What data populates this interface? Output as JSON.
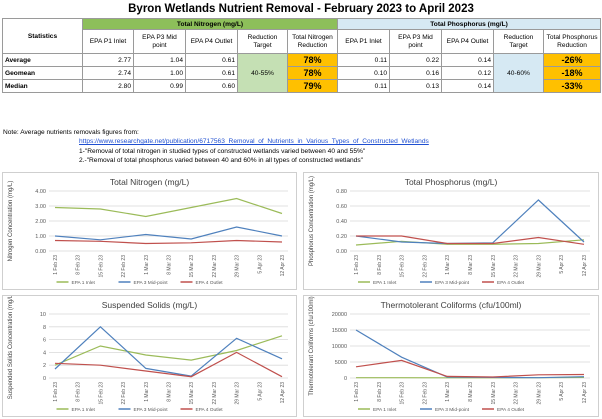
{
  "title": "Byron Wetlands Nutrient Removal - February 2023 to April 2023",
  "table": {
    "statistics_label": "Statistics",
    "nitrogen_group": "Total Nitrogen (mg/L)",
    "phosphorus_group": "Total Phosphorus (mg/L)",
    "columns": {
      "n_p1": "EPA P1 Inlet",
      "n_p3": "EPA P3 Mid point",
      "n_p4": "EPA P4 Outlet",
      "n_target": "Reduction Target",
      "n_reduction": "Total Nitrogen Reduction",
      "p_p1": "EPA P1 Inlet",
      "p_p3": "EPA P3 Mid point",
      "p_p4": "EPA P4 Outlet",
      "p_target": "Reduction Target",
      "p_reduction": "Total Phosphorus Reduction"
    },
    "n_target_value": "40-55%",
    "p_target_value": "40-60%",
    "rows": [
      {
        "label": "Average",
        "n_p1": "2.77",
        "n_p3": "1.04",
        "n_p4": "0.61",
        "n_red": "78%",
        "p_p1": "0.11",
        "p_p3": "0.22",
        "p_p4": "0.14",
        "p_red": "-26%"
      },
      {
        "label": "Geomean",
        "n_p1": "2.74",
        "n_p3": "1.00",
        "n_p4": "0.61",
        "n_red": "78%",
        "p_p1": "0.10",
        "p_p3": "0.16",
        "p_p4": "0.12",
        "p_red": "-18%"
      },
      {
        "label": "Median",
        "n_p1": "2.80",
        "n_p3": "0.99",
        "n_p4": "0.60",
        "n_red": "79%",
        "p_p1": "0.11",
        "p_p3": "0.13",
        "p_p4": "0.14",
        "p_red": "-33%"
      }
    ]
  },
  "notes": {
    "line1": "Note: Average nutrients removals figures from:",
    "link": "https://www.researchgate.net/publication/6717563_Removal_of_Nutrients_in_Various_Types_of_Constructed_Wetlands",
    "line2": "1-\"Removal of total nitrogen in studied types of constructed wetlands varied between 40 and 55%\"",
    "line3": "2.-\"Removal of total phosphorus varied between 40 and 60% in all types of constructed wetlands\""
  },
  "colors": {
    "p1": "#9bbb59",
    "p3": "#4f81bd",
    "p4": "#c0504d"
  },
  "chart_data": [
    {
      "type": "line",
      "title": "Total Nitrogen (mg/L)",
      "ylabel": "Nitrogen Concentration (mg/L)",
      "ylim": [
        0,
        4
      ],
      "yticks": [
        "0.00",
        "1.00",
        "2.00",
        "3.00",
        "4.00"
      ],
      "x": [
        "1 Feb 23",
        "8 Feb 23",
        "15 Feb 23",
        "22 Feb 23",
        "1 Mar 23",
        "8 Mar 23",
        "15 Mar 23",
        "22 Mar 23",
        "29 Mar 23",
        "5 Apr 23",
        "12 Apr 23"
      ],
      "series": [
        {
          "name": "EPA 1 Inlet",
          "x": [
            "1 Feb 23",
            "15 Feb 23",
            "1 Mar 23",
            "15 Mar 23",
            "29 Mar 23",
            "12 Apr 23"
          ],
          "values": [
            2.9,
            2.8,
            2.3,
            2.9,
            3.5,
            2.5
          ]
        },
        {
          "name": "EPA 3 Mid-point",
          "x": [
            "1 Feb 23",
            "15 Feb 23",
            "1 Mar 23",
            "15 Mar 23",
            "29 Mar 23",
            "12 Apr 23"
          ],
          "values": [
            1.0,
            0.75,
            1.1,
            0.8,
            1.6,
            1.0
          ]
        },
        {
          "name": "EPA 4 Outlet",
          "x": [
            "1 Feb 23",
            "15 Feb 23",
            "1 Mar 23",
            "15 Mar 23",
            "29 Mar 23",
            "12 Apr 23"
          ],
          "values": [
            0.7,
            0.65,
            0.5,
            0.55,
            0.7,
            0.6
          ]
        }
      ]
    },
    {
      "type": "line",
      "title": "Total Phosphorus (mg/L)",
      "ylabel": "Phosphorus Concentration (mg/L)",
      "ylim": [
        0,
        0.8
      ],
      "yticks": [
        "0.00",
        "0.20",
        "0.40",
        "0.60",
        "0.80"
      ],
      "x": [
        "1 Feb 23",
        "8 Feb 23",
        "15 Feb 23",
        "22 Feb 23",
        "1 Mar 23",
        "8 Mar 23",
        "15 Mar 23",
        "22 Mar 23",
        "29 Mar 23",
        "5 Apr 23",
        "12 Apr 23"
      ],
      "series": [
        {
          "name": "EPA 1 Inlet",
          "x": [
            "1 Feb 23",
            "15 Feb 23",
            "1 Mar 23",
            "15 Mar 23",
            "29 Mar 23",
            "12 Apr 23"
          ],
          "values": [
            0.08,
            0.13,
            0.09,
            0.09,
            0.1,
            0.15
          ]
        },
        {
          "name": "EPA 3 Mid-point",
          "x": [
            "1 Feb 23",
            "15 Feb 23",
            "1 Mar 23",
            "15 Mar 23",
            "29 Mar 23",
            "12 Apr 23"
          ],
          "values": [
            0.2,
            0.12,
            0.1,
            0.11,
            0.68,
            0.12
          ]
        },
        {
          "name": "EPA 4 Outlet",
          "x": [
            "1 Feb 23",
            "15 Feb 23",
            "1 Mar 23",
            "15 Mar 23",
            "29 Mar 23",
            "12 Apr 23"
          ],
          "values": [
            0.2,
            0.2,
            0.1,
            0.1,
            0.18,
            0.09
          ]
        }
      ]
    },
    {
      "type": "line",
      "title": "Suspended Solids (mg/L)",
      "ylabel": "Suspended Solids Concentration (mg/L)",
      "ylim": [
        0,
        10
      ],
      "yticks": [
        "0",
        "2",
        "4",
        "6",
        "8",
        "10"
      ],
      "x": [
        "1 Feb 23",
        "8 Feb 23",
        "15 Feb 23",
        "22 Feb 23",
        "1 Mar 23",
        "8 Mar 23",
        "15 Mar 23",
        "22 Mar 23",
        "29 Mar 23",
        "5 Apr 23",
        "12 Apr 23"
      ],
      "series": [
        {
          "name": "EPA 1 Inlet",
          "x": [
            "1 Feb 23",
            "15 Feb 23",
            "1 Mar 23",
            "15 Mar 23",
            "29 Mar 23",
            "12 Apr 23"
          ],
          "values": [
            2.0,
            5.0,
            3.6,
            2.8,
            4.3,
            6.6
          ]
        },
        {
          "name": "EPA 3 Mid-point",
          "x": [
            "1 Feb 23",
            "15 Feb 23",
            "1 Mar 23",
            "15 Mar 23",
            "29 Mar 23",
            "12 Apr 23"
          ],
          "values": [
            1.4,
            8.0,
            1.5,
            0.3,
            6.2,
            3.0
          ]
        },
        {
          "name": "EPA 4 Outlet",
          "x": [
            "1 Feb 23",
            "15 Feb 23",
            "1 Mar 23",
            "15 Mar 23",
            "29 Mar 23",
            "12 Apr 23"
          ],
          "values": [
            2.3,
            2.0,
            1.1,
            0.2,
            4.0,
            0.2
          ]
        }
      ]
    },
    {
      "type": "line",
      "title": "Thermotolerant Coliforms (cfu/100ml)",
      "ylabel": "Thermotolerant Coliforms (cfu/100ml)",
      "ylim": [
        0,
        20000
      ],
      "yticks": [
        "0",
        "5000",
        "10000",
        "15000",
        "20000"
      ],
      "x": [
        "1 Feb 23",
        "8 Feb 23",
        "15 Feb 23",
        "22 Feb 23",
        "1 Mar 23",
        "8 Mar 23",
        "15 Mar 23",
        "22 Mar 23",
        "29 Mar 23",
        "5 Apr 23",
        "12 Apr 23"
      ],
      "series": [
        {
          "name": "EPA 1 Inlet",
          "x": [
            "1 Feb 23",
            "15 Feb 23",
            "1 Mar 23",
            "15 Mar 23",
            "29 Mar 23",
            "12 Apr 23"
          ],
          "values": [
            100,
            80,
            60,
            60,
            80,
            200
          ]
        },
        {
          "name": "EPA 3 Mid-point",
          "x": [
            "1 Feb 23",
            "15 Feb 23",
            "1 Mar 23",
            "15 Mar 23",
            "29 Mar 23",
            "12 Apr 23"
          ],
          "values": [
            15000,
            6500,
            300,
            200,
            100,
            400
          ]
        },
        {
          "name": "EPA 4 Outlet",
          "x": [
            "1 Feb 23",
            "15 Feb 23",
            "1 Mar 23",
            "15 Mar 23",
            "29 Mar 23",
            "12 Apr 23"
          ],
          "values": [
            3500,
            5500,
            500,
            300,
            1000,
            1100
          ]
        }
      ]
    }
  ]
}
